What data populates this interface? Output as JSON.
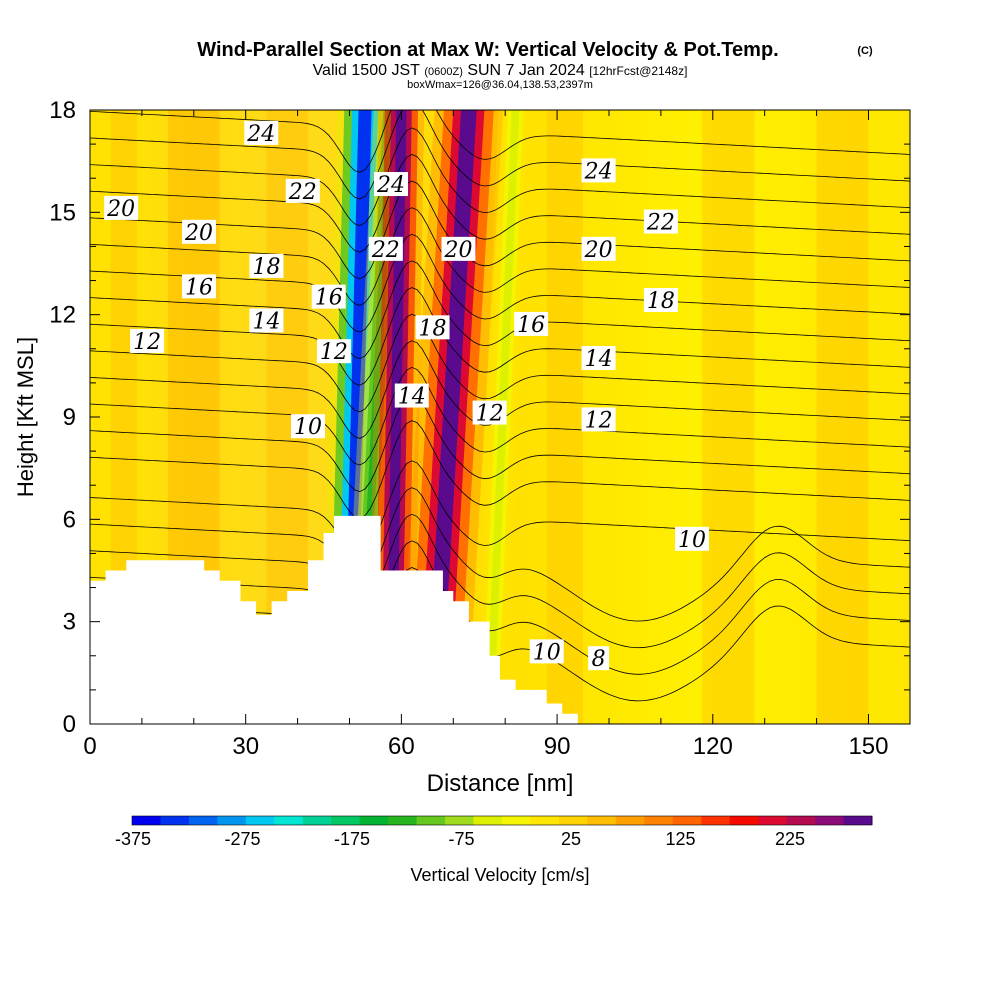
{
  "chart_data": {
    "type": "heatmap",
    "title": "Wind-Parallel Section at Max W: Vertical Velocity & Pot.Temp.",
    "title_mark": "(C)",
    "subtitle": {
      "valid_prefix": "Valid 1500 JST",
      "utc": "(0600Z)",
      "date": "SUN 7 Jan 2024",
      "forecast": "[12hrFcst@2148z]"
    },
    "subtitle2": "boxWmax=126@36.04,138.53,2397m",
    "xlabel": "Distance [nm]",
    "ylabel": "Height [Kft MSL]",
    "xlim": [
      0,
      158
    ],
    "ylim": [
      0,
      18
    ],
    "x_ticks": [
      "0",
      "30",
      "60",
      "90",
      "120",
      "150"
    ],
    "y_ticks": [
      "0",
      "3",
      "6",
      "9",
      "12",
      "15",
      "18"
    ],
    "terrain": {
      "x": [
        0,
        3,
        3,
        7,
        7,
        10,
        10,
        22,
        22,
        25,
        25,
        29,
        29,
        32,
        32,
        35,
        35,
        38,
        38,
        42,
        42,
        45,
        45,
        47,
        47,
        56,
        56,
        68,
        68,
        70,
        70,
        73,
        73,
        77,
        77,
        79,
        79,
        82,
        82,
        88,
        88,
        91,
        91,
        94,
        94,
        99,
        99,
        158
      ],
      "height": [
        4.2,
        4.2,
        4.5,
        4.5,
        4.8,
        4.8,
        4.8,
        4.8,
        4.5,
        4.5,
        4.2,
        4.2,
        3.6,
        3.6,
        3.2,
        3.2,
        3.6,
        3.6,
        3.9,
        3.9,
        4.8,
        4.8,
        5.6,
        5.6,
        6.1,
        6.1,
        4.5,
        4.5,
        3.9,
        3.9,
        3.6,
        3.6,
        3.0,
        3.0,
        2.0,
        2.0,
        1.3,
        1.3,
        1.0,
        1.0,
        0.6,
        0.6,
        0.3,
        0.3,
        0.0,
        0.0,
        0.0,
        0.0
      ]
    },
    "vertical_velocity_features": [
      {
        "x_top": 53,
        "x_bottom": 50,
        "width": 5,
        "w": -375
      },
      {
        "x_top": 58,
        "x_bottom": 52,
        "width": 3,
        "w": -175
      },
      {
        "x_top": 60,
        "x_bottom": 58,
        "width": 4,
        "w": 250
      },
      {
        "x_top": 73,
        "x_bottom": 66,
        "width": 6,
        "w": 225
      },
      {
        "x_top": 82,
        "x_bottom": 77,
        "width": 3,
        "w": -100
      }
    ],
    "potential_temperature_labels": [
      {
        "text": "24",
        "x": 33,
        "y": 17.3
      },
      {
        "text": "24",
        "x": 58,
        "y": 15.8
      },
      {
        "text": "24",
        "x": 98,
        "y": 16.2
      },
      {
        "text": "22",
        "x": 41,
        "y": 15.6
      },
      {
        "text": "22",
        "x": 57,
        "y": 13.9
      },
      {
        "text": "22",
        "x": 110,
        "y": 14.7
      },
      {
        "text": "20",
        "x": 6,
        "y": 15.1
      },
      {
        "text": "20",
        "x": 21,
        "y": 14.4
      },
      {
        "text": "20",
        "x": 71,
        "y": 13.9
      },
      {
        "text": "20",
        "x": 98,
        "y": 13.9
      },
      {
        "text": "18",
        "x": 34,
        "y": 13.4
      },
      {
        "text": "18",
        "x": 66,
        "y": 11.6
      },
      {
        "text": "18",
        "x": 110,
        "y": 12.4
      },
      {
        "text": "16",
        "x": 21,
        "y": 12.8
      },
      {
        "text": "16",
        "x": 46,
        "y": 12.5
      },
      {
        "text": "16",
        "x": 85,
        "y": 11.7
      },
      {
        "text": "14",
        "x": 34,
        "y": 11.8
      },
      {
        "text": "14",
        "x": 62,
        "y": 9.6
      },
      {
        "text": "14",
        "x": 98,
        "y": 10.7
      },
      {
        "text": "12",
        "x": 11,
        "y": 11.2
      },
      {
        "text": "12",
        "x": 47,
        "y": 10.9
      },
      {
        "text": "12",
        "x": 77,
        "y": 9.1
      },
      {
        "text": "12",
        "x": 98,
        "y": 8.9
      },
      {
        "text": "10",
        "x": 42,
        "y": 8.7
      },
      {
        "text": "10",
        "x": 116,
        "y": 5.4
      },
      {
        "text": "10",
        "x": 88,
        "y": 2.1
      },
      {
        "text": "8",
        "x": 98,
        "y": 1.9
      }
    ],
    "colorbar": {
      "label": "Vertical Velocity [cm/s]",
      "tick_labels": [
        "-375",
        "-275",
        "-175",
        "-75",
        "25",
        "125",
        "225"
      ],
      "colors": [
        "#0000f0",
        "#0032f0",
        "#0064f0",
        "#0096f0",
        "#00c8f0",
        "#00e6d2",
        "#00d296",
        "#00c864",
        "#00b432",
        "#28b41e",
        "#64c81e",
        "#a0dc1e",
        "#dcf000",
        "#f5f500",
        "#ffe600",
        "#ffd200",
        "#ffbe00",
        "#ffa000",
        "#ff8200",
        "#ff6400",
        "#ff3200",
        "#f50a00",
        "#dc0a32",
        "#b40a50",
        "#8c0a78",
        "#5a0a8c"
      ]
    }
  }
}
